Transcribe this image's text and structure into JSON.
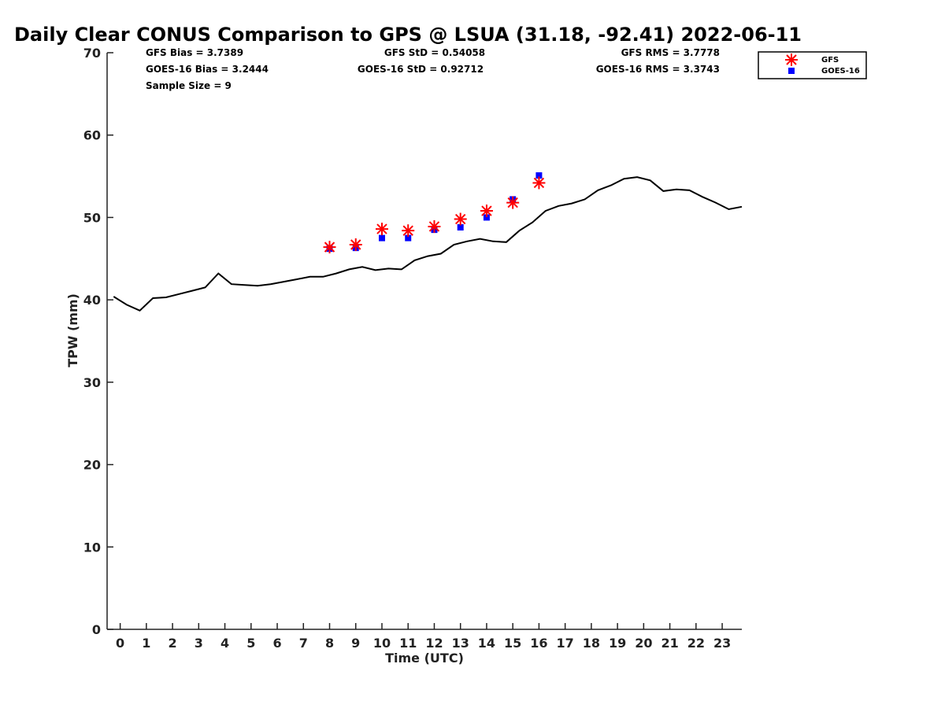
{
  "chart_data": {
    "type": "line",
    "title": "Daily Clear CONUS Comparison to GPS @ LSUA (31.18, -92.41) 2022-06-11",
    "xlabel": "Time (UTC)",
    "ylabel": "TPW (mm)",
    "xlim": [
      -0.5,
      23.75
    ],
    "ylim": [
      0,
      70
    ],
    "xticks": [
      0,
      1,
      2,
      3,
      4,
      5,
      6,
      7,
      8,
      9,
      10,
      11,
      12,
      13,
      14,
      15,
      16,
      17,
      18,
      19,
      20,
      21,
      22,
      23
    ],
    "yticks": [
      0,
      10,
      20,
      30,
      40,
      50,
      60,
      70
    ],
    "grid": false,
    "legend_position": "top-right",
    "stats": {
      "gfs_bias": "GFS Bias = 3.7389",
      "goes_bias": "GOES-16 Bias = 3.2444",
      "sample_size": "Sample Size = 9",
      "gfs_std": "GFS StD = 0.54058",
      "goes_std": "GOES-16 StD = 0.92712",
      "gfs_rms": "GFS RMS = 3.7778",
      "goes_rms": "GOES-16 RMS = 3.3743"
    },
    "series": [
      {
        "name": "",
        "kind": "line",
        "color": "#000000",
        "x": [
          -0.25,
          0.25,
          0.75,
          1.25,
          1.75,
          2.25,
          2.75,
          3.25,
          3.75,
          4.25,
          4.75,
          5.25,
          5.75,
          6.25,
          6.75,
          7.25,
          7.75,
          8.25,
          8.75,
          9.25,
          9.75,
          10.25,
          10.75,
          11.25,
          11.75,
          12.25,
          12.75,
          13.25,
          13.75,
          14.25,
          14.75,
          15.25,
          15.75,
          16.25,
          16.75,
          17.25,
          17.75,
          18.25,
          18.75,
          19.25,
          19.75,
          20.25,
          20.75,
          21.25,
          21.75,
          22.25,
          22.75,
          23.25,
          23.75
        ],
        "y": [
          40.4,
          39.4,
          38.7,
          40.2,
          40.3,
          40.7,
          41.1,
          41.5,
          43.2,
          41.9,
          41.8,
          41.7,
          41.9,
          42.2,
          42.5,
          42.8,
          42.8,
          43.2,
          43.7,
          44.0,
          43.6,
          43.8,
          43.7,
          44.8,
          45.3,
          45.6,
          46.7,
          47.1,
          47.4,
          47.1,
          47.0,
          48.4,
          49.4,
          50.8,
          51.4,
          51.7,
          52.2,
          53.3,
          53.9,
          54.7,
          54.9,
          54.5,
          53.2,
          53.4,
          53.3,
          52.5,
          51.8,
          51.0,
          51.3
        ]
      },
      {
        "name": "GFS",
        "kind": "scatter",
        "marker": "asterisk",
        "color": "#ff0000",
        "x": [
          8,
          9,
          10,
          11,
          12,
          13,
          14,
          15,
          16
        ],
        "y": [
          46.4,
          46.7,
          48.6,
          48.4,
          48.9,
          49.8,
          50.8,
          51.8,
          54.2
        ]
      },
      {
        "name": "GOES-16",
        "kind": "scatter",
        "marker": "square",
        "color": "#0000ff",
        "x": [
          8,
          9,
          10,
          11,
          12,
          13,
          14,
          15,
          16
        ],
        "y": [
          46.2,
          46.3,
          47.5,
          47.5,
          48.5,
          48.8,
          50.0,
          52.2,
          55.1
        ]
      }
    ]
  }
}
